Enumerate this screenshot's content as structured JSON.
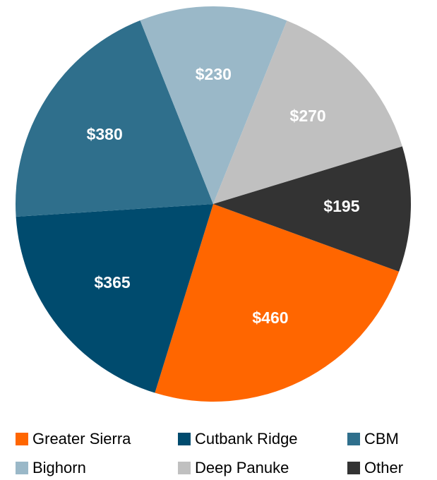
{
  "chart_data": {
    "type": "pie",
    "categories": [
      "Greater Sierra",
      "Cutbank Ridge",
      "CBM",
      "Bighorn",
      "Deep Panuke",
      "Other"
    ],
    "values": [
      460,
      365,
      380,
      230,
      270,
      195
    ],
    "value_labels": [
      "$460",
      "$365",
      "$380",
      "$230",
      "$270",
      "$195"
    ],
    "colors": [
      "#ff6600",
      "#004b6e",
      "#2f6f8c",
      "#9ab8c8",
      "#c0c0c0",
      "#333333"
    ],
    "legend": "bottom"
  }
}
